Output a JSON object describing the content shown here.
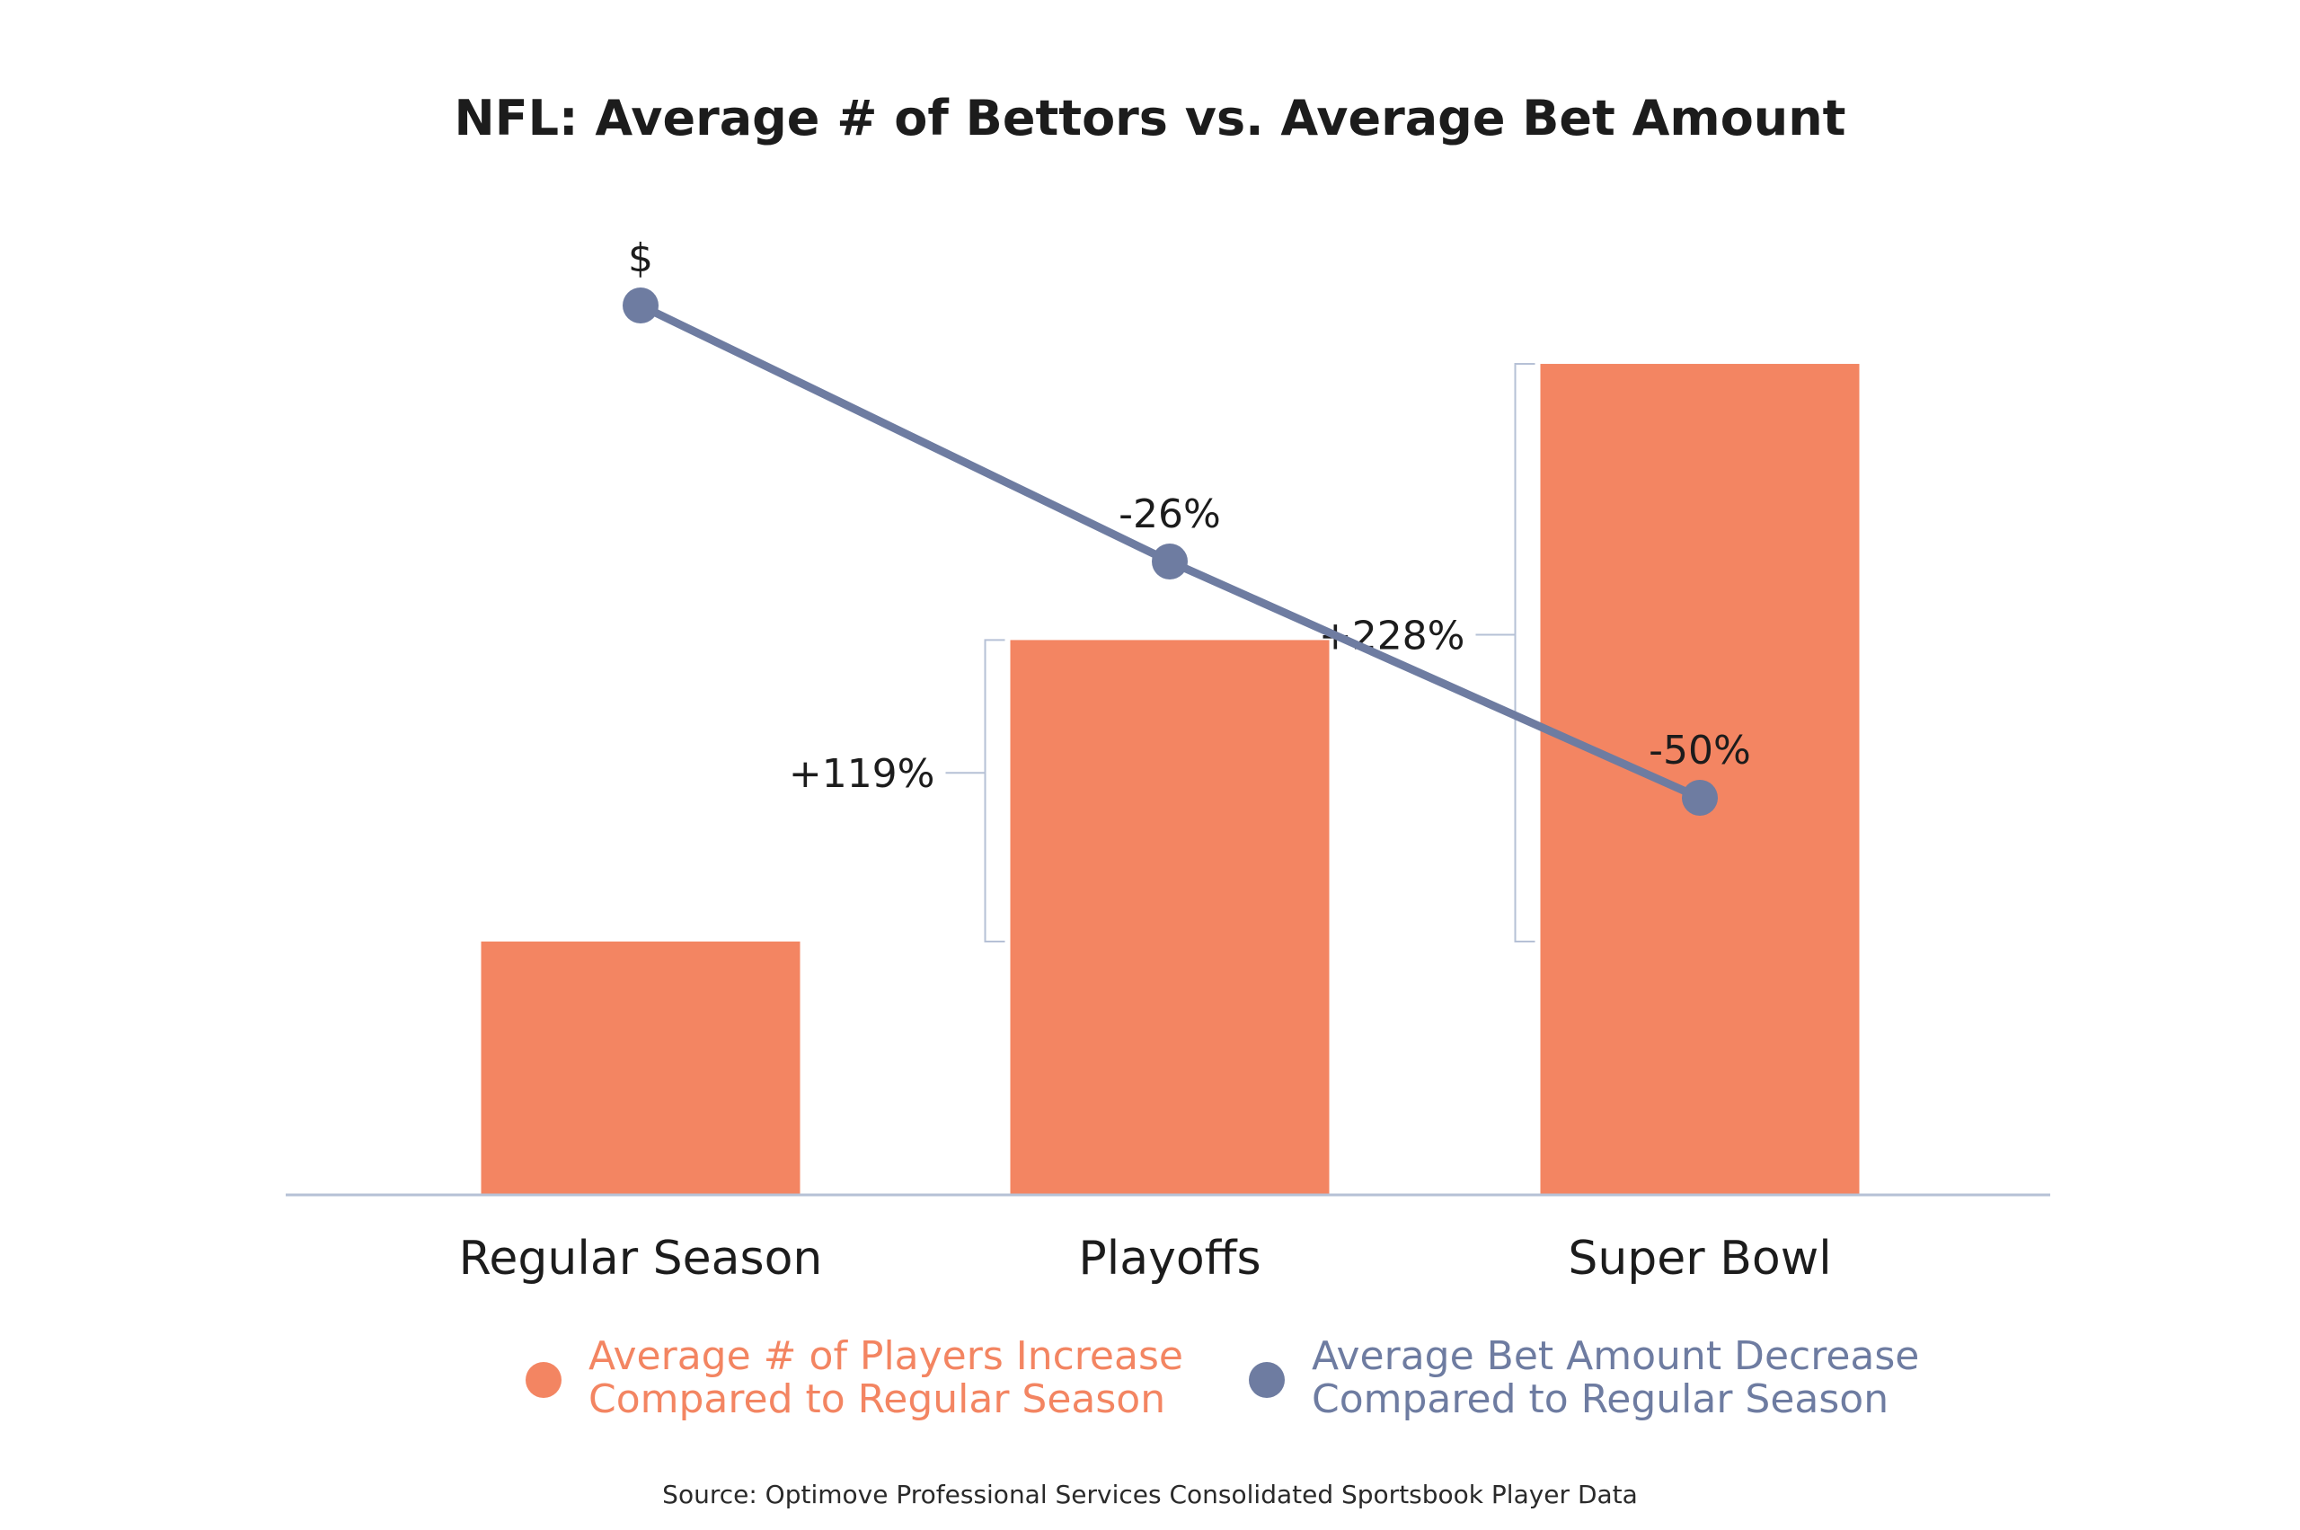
{
  "chart_data": {
    "type": "bar",
    "title": "NFL: Average # of Bettors vs. Average Bet Amount",
    "categories": [
      "Regular Season",
      "Playoffs",
      "Super Bowl"
    ],
    "series": [
      {
        "name": "Average # of Players Increase Compared to Regular Season",
        "type": "bar",
        "relative_values": [
          1.0,
          2.19,
          3.28
        ],
        "labels": [
          "",
          "+119%",
          "+228%"
        ],
        "color": "#f38562"
      },
      {
        "name": "Average Bet Amount Decrease Compared to Regular Season",
        "type": "line",
        "relative_values": [
          1.0,
          0.74,
          0.5
        ],
        "labels": [
          "$",
          "-26%",
          "-50%"
        ],
        "color": "#6e7ca1"
      }
    ],
    "legend": [
      {
        "line1": "Average # of Players Increase",
        "line2": "Compared to Regular Season",
        "color": "#f38562"
      },
      {
        "line1": "Average Bet Amount Decrease",
        "line2": "Compared to Regular Season",
        "color": "#6e7ca1"
      }
    ],
    "source": "Source: Optimove Professional Services Consolidated Sportsbook Player Data",
    "axis_color": "#b6c1d6",
    "bracket_color": "#b6c1d6"
  }
}
